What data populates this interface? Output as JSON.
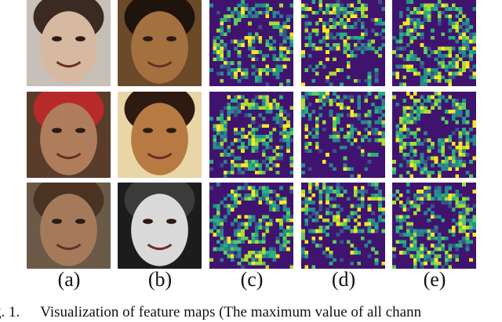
{
  "figure": {
    "column_labels": [
      "(a)",
      "(b)",
      "(c)",
      "(d)",
      "(e)"
    ],
    "caption_number": "g. 1.",
    "caption_text": "Visualization of feature maps (The maximum value of all chann",
    "feature_map_colors": {
      "background": "#40146e",
      "palette": [
        "#3b528b",
        "#2c7f8e",
        "#21918c",
        "#28ae80",
        "#5ec962",
        "#aadc32",
        "#fde725"
      ]
    },
    "photos": [
      {
        "row": 0,
        "col": 0,
        "desc": "smiling young man, dark hair",
        "bg": "#c7c0b8",
        "skin": "#d7b8a0",
        "hair": "#3a2a22"
      },
      {
        "row": 0,
        "col": 1,
        "desc": "smiling woman, dark hair",
        "bg": "#6b4a2a",
        "skin": "#a5703f",
        "hair": "#1f140c"
      },
      {
        "row": 1,
        "col": 0,
        "desc": "man with red cap, blurred",
        "bg": "#5a3c2a",
        "skin": "#b07d5c",
        "hair": "#b82a2a"
      },
      {
        "row": 1,
        "col": 1,
        "desc": "child smiling",
        "bg": "#e9d6a6",
        "skin": "#b77a43",
        "hair": "#2d1a10"
      },
      {
        "row": 2,
        "col": 0,
        "desc": "bearded man",
        "bg": "#6b5a48",
        "skin": "#a47a5a",
        "hair": "#4a3322"
      },
      {
        "row": 2,
        "col": 1,
        "desc": "grayscale woman looking down",
        "bg": "#1c1c1c",
        "skin": "#d9d9d9",
        "hair": "#3b3b3b"
      }
    ]
  }
}
